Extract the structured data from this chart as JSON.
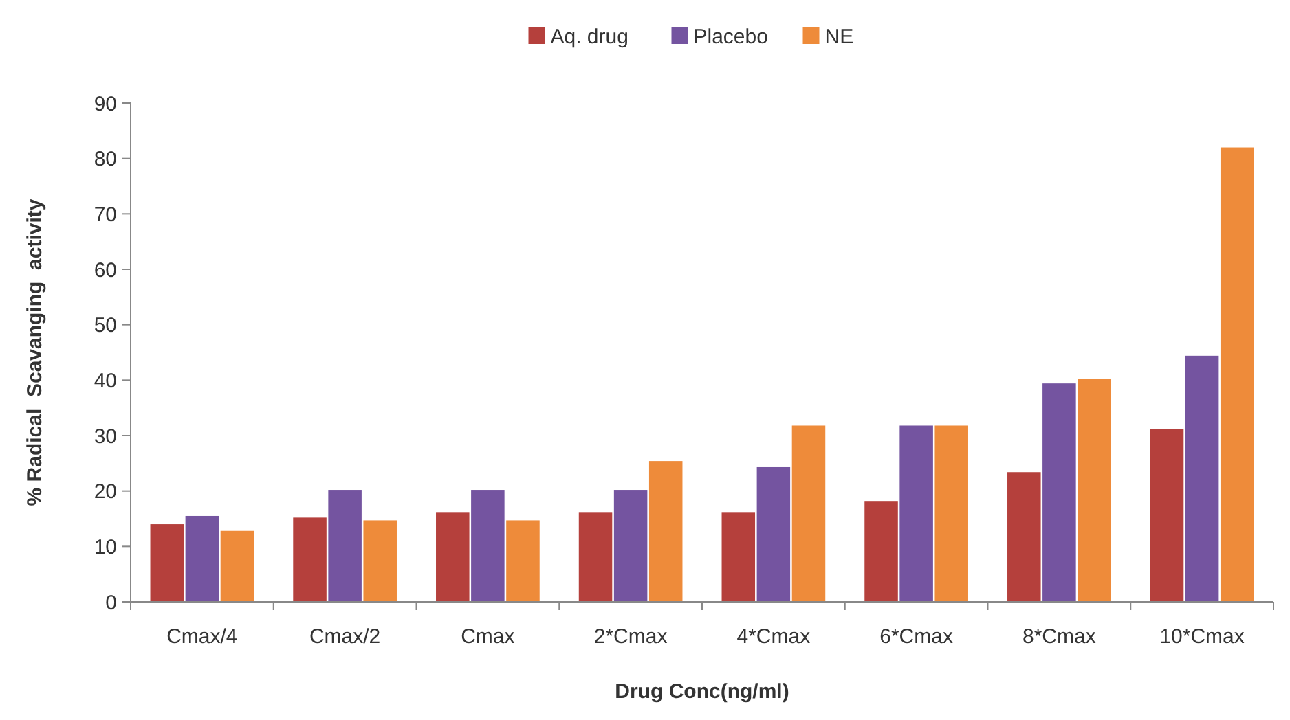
{
  "chart_data": {
    "type": "bar",
    "xlabel": "Drug Conc(ng/ml)",
    "ylabel": "% Radical  Scavanging  activity",
    "categories": [
      "Cmax/4",
      "Cmax/2",
      "Cmax",
      "2*Cmax",
      "4*Cmax",
      "6*Cmax",
      "8*Cmax",
      "10*Cmax"
    ],
    "series": [
      {
        "name": "Aq. drug",
        "color": "#b5403c",
        "values": [
          14,
          15.2,
          16.2,
          16.2,
          16.2,
          18.2,
          23.4,
          31.2
        ]
      },
      {
        "name": "Placebo",
        "color": "#7454a0",
        "values": [
          15.5,
          20.2,
          20.2,
          20.2,
          24.3,
          31.8,
          39.4,
          44.4
        ]
      },
      {
        "name": "NE",
        "color": "#ee8b3a",
        "values": [
          12.8,
          14.7,
          14.7,
          25.4,
          31.8,
          31.8,
          40.2,
          82
        ]
      }
    ],
    "ylim": [
      0,
      90
    ],
    "yticks": [
      0,
      10,
      20,
      30,
      40,
      50,
      60,
      70,
      80,
      90
    ],
    "grid": false,
    "legend": "top"
  }
}
